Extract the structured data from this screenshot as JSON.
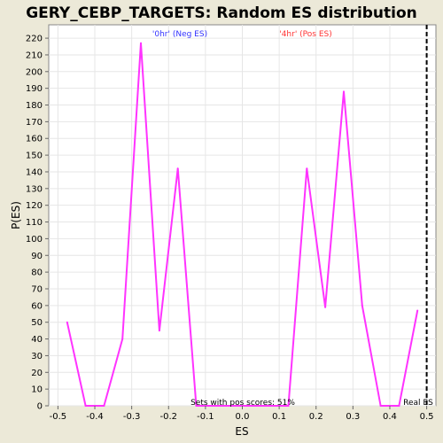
{
  "chart_data": {
    "type": "line",
    "title": "GERY_CEBP_TARGETS: Random ES distribution",
    "xlabel": "ES",
    "ylabel": "P(ES)",
    "xlim": [
      -0.525,
      0.525
    ],
    "ylim": [
      0,
      228
    ],
    "x_ticks": [
      -0.5,
      -0.4,
      -0.3,
      -0.2,
      -0.1,
      0.0,
      0.1,
      0.2,
      0.3,
      0.4,
      0.5
    ],
    "x_tick_labels": [
      "-0.5",
      "-0.4",
      "-0.3",
      "-0.2",
      "-0.1",
      "0.0",
      "0.1",
      "0.2",
      "0.3",
      "0.4",
      "0.5"
    ],
    "y_ticks": [
      0,
      10,
      20,
      30,
      40,
      50,
      60,
      70,
      80,
      90,
      100,
      110,
      120,
      130,
      140,
      150,
      160,
      170,
      180,
      190,
      200,
      210,
      220
    ],
    "y_tick_labels": [
      "0",
      "10",
      "20",
      "30",
      "40",
      "50",
      "60",
      "70",
      "80",
      "90",
      "100",
      "110",
      "120",
      "130",
      "140",
      "150",
      "160",
      "170",
      "180",
      "190",
      "200",
      "210",
      "220"
    ],
    "series": [
      {
        "color": "#ff33ff",
        "x": [
          -0.475,
          -0.425,
          -0.375,
          -0.325,
          -0.275,
          -0.225,
          -0.175,
          -0.125,
          -0.075,
          -0.025,
          0.025,
          0.075,
          0.125,
          0.175,
          0.225,
          0.275,
          0.325,
          0.375,
          0.425,
          0.475
        ],
        "y": [
          50,
          0,
          0,
          40,
          217,
          45,
          142,
          0,
          0,
          0,
          0,
          0,
          0,
          142,
          59,
          188,
          60,
          0,
          0,
          57
        ]
      }
    ],
    "real_es": 0.5,
    "annotations": {
      "neg": "'0hr' (Neg ES)",
      "pos": "'4hr' (Pos ES)",
      "pos_scores": "Sets with pos scores: 51%",
      "real_es": "Real ES"
    },
    "colors": {
      "background": "#ece9d8",
      "plot_background": "#ffffff",
      "grid": "#e6e6e6",
      "neg_label": "#3333ff",
      "pos_label": "#ff3333",
      "real_es_line": "#000000"
    },
    "grid": true
  }
}
